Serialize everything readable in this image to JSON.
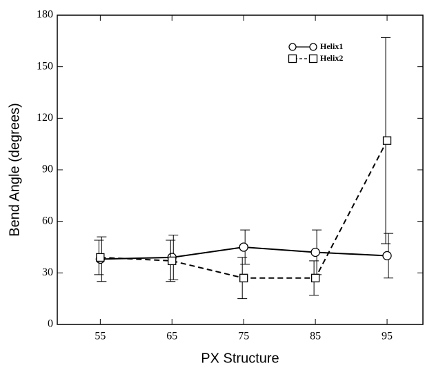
{
  "chart_data": {
    "type": "line",
    "x_label": "PX Structure",
    "y_label": "Bend Angle (degrees)",
    "x": [
      55,
      65,
      75,
      85,
      95
    ],
    "series": [
      {
        "name": "Helix1",
        "color": "#000000",
        "dash": "solid",
        "marker": "circle",
        "values": [
          38,
          39,
          45,
          42,
          40
        ],
        "errors": [
          13,
          13,
          10,
          13,
          13
        ]
      },
      {
        "name": "Helix2",
        "color": "#000000",
        "dash": "dashed",
        "marker": "square",
        "values": [
          39,
          37,
          27,
          27,
          107
        ],
        "errors": [
          10,
          12,
          12,
          10,
          60
        ]
      }
    ],
    "xlim": [
      49,
      100
    ],
    "ylim": [
      0,
      180
    ],
    "xticks": [
      55,
      65,
      75,
      85,
      95
    ],
    "yticks": [
      0,
      30,
      60,
      90,
      120,
      150,
      180
    ],
    "grid": false,
    "legend": "upper-right"
  }
}
